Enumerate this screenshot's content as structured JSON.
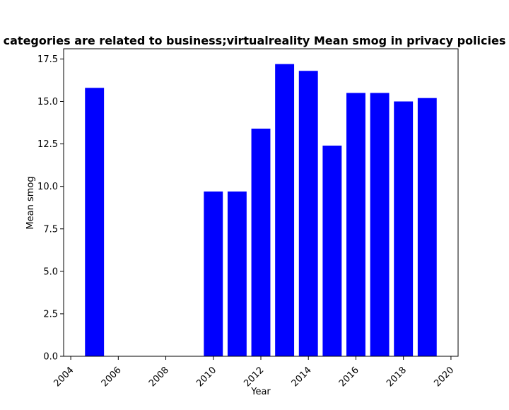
{
  "chart_data": {
    "type": "bar",
    "title": "categories are related to business;virtualreality Mean smog in privacy policies",
    "xlabel": "Year",
    "ylabel": "Mean smog",
    "x": [
      2005,
      2010,
      2011,
      2012,
      2013,
      2014,
      2015,
      2016,
      2017,
      2018,
      2019
    ],
    "values": [
      15.8,
      9.7,
      9.7,
      13.4,
      17.2,
      16.8,
      12.4,
      15.5,
      15.5,
      15.0,
      15.2
    ],
    "xlim": [
      2003.7,
      2020.3
    ],
    "ylim": [
      0,
      18.1
    ],
    "x_ticks": [
      "2004",
      "2006",
      "2008",
      "2010",
      "2012",
      "2014",
      "2016",
      "2018",
      "2020"
    ],
    "y_ticks": [
      "0.0",
      "2.5",
      "5.0",
      "7.5",
      "10.0",
      "12.5",
      "15.0",
      "17.5"
    ],
    "bar_color": "#0000ff",
    "grid": false,
    "legend": "none"
  }
}
